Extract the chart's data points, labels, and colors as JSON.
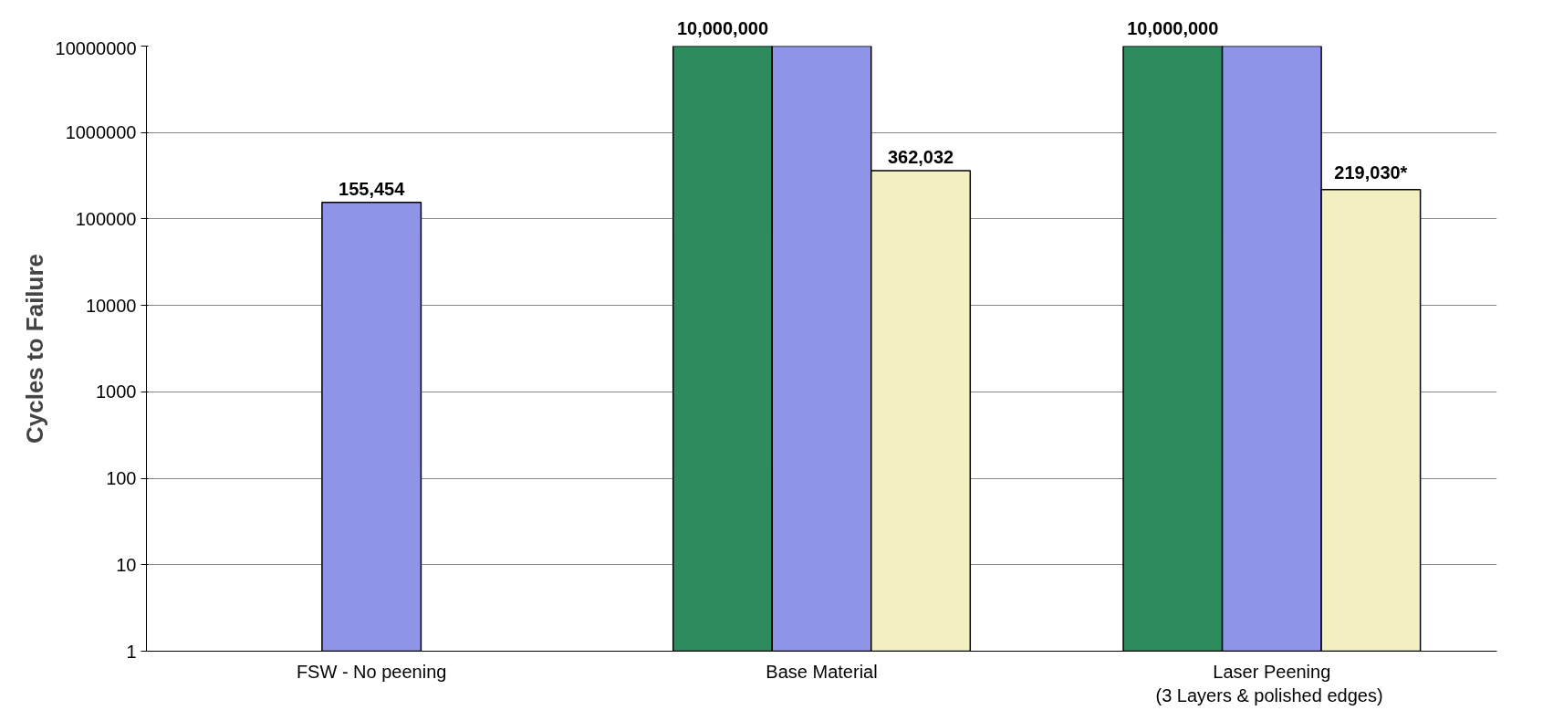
{
  "chart_data": {
    "type": "bar",
    "ylabel": "Cycles to Failure",
    "categories": [
      "FSW - No peening",
      "Base Material",
      "Laser Peening\n (3 Layers & polished edges)"
    ],
    "series": [
      {
        "color": "#2e8b5e",
        "values": [
          null,
          10000000,
          10000000
        ],
        "value_labels": [
          null,
          "10,000,000",
          "10,000,000"
        ]
      },
      {
        "color": "#8f94e8",
        "values": [
          155454,
          10000000,
          10000000
        ],
        "value_labels": [
          "155,454",
          null,
          null
        ]
      },
      {
        "color": "#f2f0c0",
        "values": [
          null,
          362032,
          219030
        ],
        "value_labels": [
          null,
          "362,032",
          "219,030*"
        ]
      }
    ],
    "log": "y",
    "ylim": [
      1,
      10000000
    ],
    "yticks": [
      1,
      10,
      100,
      1000,
      10000,
      100000,
      1000000,
      10000000
    ],
    "grid": "y"
  }
}
